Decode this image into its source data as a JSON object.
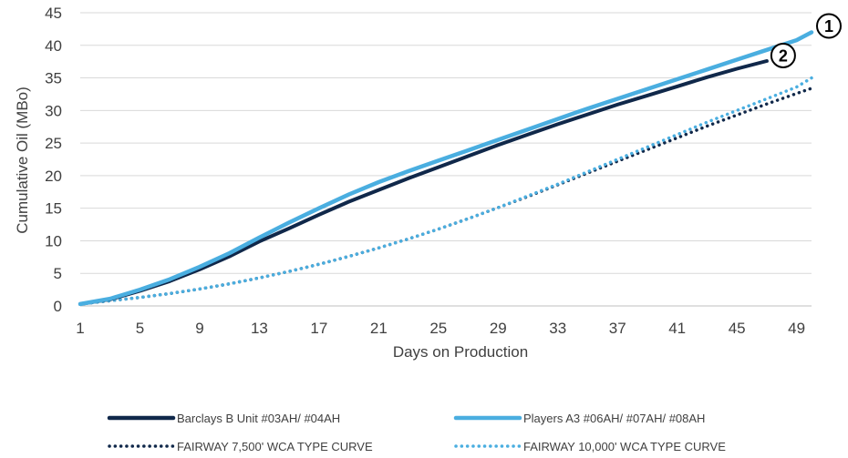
{
  "chart_data": {
    "type": "line",
    "title": "",
    "xlabel": "Days on Production",
    "ylabel": "Cumulative Oil (MBo)",
    "xlim": [
      1,
      50
    ],
    "ylim": [
      0,
      45
    ],
    "x_ticks": [
      1,
      5,
      9,
      13,
      17,
      21,
      25,
      29,
      33,
      37,
      41,
      45,
      49
    ],
    "y_ticks": [
      0,
      5,
      10,
      15,
      20,
      25,
      30,
      35,
      40,
      45
    ],
    "grid": "horizontal",
    "legend_position": "bottom",
    "series": [
      {
        "name": "Barclays B Unit #03AH/ #04AH",
        "style": "solid",
        "color": "#10284a",
        "x": [
          1,
          3,
          5,
          7,
          9,
          11,
          13,
          15,
          17,
          19,
          21,
          23,
          25,
          27,
          29,
          31,
          33,
          35,
          37,
          39,
          41,
          43,
          45,
          47
        ],
        "y": [
          0.3,
          1.0,
          2.3,
          3.8,
          5.6,
          7.6,
          9.9,
          11.9,
          14.0,
          16.0,
          17.8,
          19.6,
          21.3,
          23.0,
          24.7,
          26.3,
          27.9,
          29.4,
          30.9,
          32.3,
          33.7,
          35.1,
          36.4,
          37.6
        ]
      },
      {
        "name": "Players A3 #06AH/ #07AH/ #08AH",
        "style": "solid",
        "color": "#4aaee0",
        "x": [
          1,
          3,
          5,
          7,
          9,
          11,
          13,
          15,
          17,
          19,
          21,
          23,
          25,
          27,
          29,
          31,
          33,
          35,
          37,
          39,
          41,
          43,
          45,
          47,
          49,
          50
        ],
        "y": [
          0.3,
          1.1,
          2.5,
          4.1,
          6.0,
          8.1,
          10.5,
          12.8,
          15.0,
          17.1,
          19.0,
          20.7,
          22.3,
          23.9,
          25.5,
          27.1,
          28.7,
          30.3,
          31.8,
          33.3,
          34.8,
          36.3,
          37.8,
          39.3,
          40.8,
          42.0
        ]
      },
      {
        "name": "FAIRWAY 7,500' WCA TYPE CURVE",
        "style": "dotted",
        "color": "#10284a",
        "x": [
          1,
          3,
          5,
          7,
          9,
          11,
          13,
          15,
          17,
          19,
          21,
          23,
          25,
          27,
          29,
          31,
          33,
          35,
          37,
          39,
          41,
          43,
          45,
          47,
          49,
          50
        ],
        "y": [
          0.3,
          0.8,
          1.3,
          1.9,
          2.6,
          3.4,
          4.3,
          5.3,
          6.4,
          7.6,
          8.9,
          10.3,
          11.8,
          13.4,
          15.1,
          16.8,
          18.6,
          20.4,
          22.2,
          24.0,
          25.8,
          27.6,
          29.3,
          31.0,
          32.6,
          33.4
        ]
      },
      {
        "name": "FAIRWAY 10,000' WCA TYPE CURVE",
        "style": "dotted",
        "color": "#4aaee0",
        "x": [
          1,
          3,
          5,
          7,
          9,
          11,
          13,
          15,
          17,
          19,
          21,
          23,
          25,
          27,
          29,
          31,
          33,
          35,
          37,
          39,
          41,
          43,
          45,
          47,
          49,
          50
        ],
        "y": [
          0.3,
          0.8,
          1.3,
          1.9,
          2.6,
          3.4,
          4.3,
          5.3,
          6.4,
          7.6,
          8.9,
          10.3,
          11.8,
          13.4,
          15.1,
          16.9,
          18.7,
          20.6,
          22.5,
          24.4,
          26.3,
          28.2,
          30.0,
          31.8,
          33.6,
          35.0
        ]
      }
    ],
    "callouts": [
      {
        "label": "1",
        "x": 50,
        "y": 42.0
      },
      {
        "label": "2",
        "x": 47,
        "y": 37.6
      }
    ]
  }
}
